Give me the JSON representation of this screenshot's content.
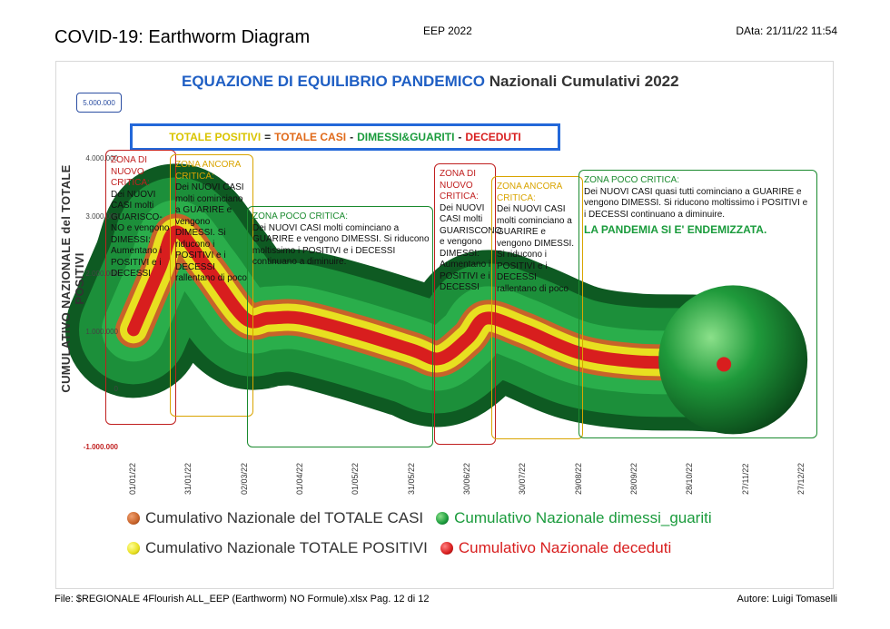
{
  "header": {
    "title": "COVID-19: Earthworm Diagram",
    "center": "EEP 2022",
    "date": "DAta: 21/11/22  11:54"
  },
  "chart_data": {
    "type": "line",
    "title_main": "EQUAZIONE DI EQUILIBRIO PANDEMICO",
    "title_sub": "Nazionali Cumulativi 2022",
    "ylabel": "CUMULATIVO NAZIONALE  del TOTALE POSITIVI",
    "ymax_label": "5.000.000",
    "yticks": [
      "4.000.000",
      "3.000.000",
      "2.000.000",
      "1.000.000",
      "0",
      "-1.000.000"
    ],
    "ylim": [
      -1000000,
      5000000
    ],
    "xticks": [
      "01/01/22",
      "31/01/22",
      "02/03/22",
      "01/04/22",
      "01/05/22",
      "31/05/22",
      "30/06/22",
      "30/07/22",
      "29/08/22",
      "28/09/22",
      "28/10/22",
      "27/11/22",
      "27/12/22"
    ],
    "x": [
      "01/01/22",
      "15/01/22",
      "24/01/22",
      "10/02/22",
      "02/03/22",
      "15/03/22",
      "01/04/22",
      "01/05/22",
      "31/05/22",
      "15/06/22",
      "30/06/22",
      "10/07/22",
      "30/07/22",
      "29/08/22",
      "28/09/22",
      "28/10/22",
      "15/11/22"
    ],
    "series": [
      {
        "name": "Cumulativo Nazionale TOTALE POSITIVI",
        "values": [
          1050000,
          2100000,
          2750000,
          2100000,
          1250000,
          1250000,
          1250000,
          1000000,
          700000,
          550000,
          900000,
          1250000,
          1050000,
          650000,
          500000,
          480000,
          450000
        ]
      }
    ],
    "equation": {
      "a": "TOTALE POSITIVI",
      "eq": "=",
      "b": "TOTALE CASI",
      "m1": "-",
      "c": "DIMESSI&GUARITI",
      "m2": "-",
      "d": "DECEDUTI"
    },
    "legend": [
      {
        "name": "Cumulativo Nazionale del TOTALE CASI",
        "color": "#c8632a"
      },
      {
        "name": "Cumulativo Nazionale dimessi_guariti",
        "color": "#1a9b3c"
      },
      {
        "name": "Cumulativo Nazionale TOTALE POSITIVI",
        "color": "#e8e020"
      },
      {
        "name": "Cumulativo Nazionale deceduti",
        "color": "#d81e1e"
      }
    ],
    "zones": [
      {
        "title": "ZONA DI NUOVO CRITICA:",
        "body": "Dei NUOVI CASI  molti GUARISCO-NO e vengono DIMESSI: Aumentano i POSITIVI e i DECESSI",
        "color": "#c01f1f"
      },
      {
        "title": "ZONA ANCORA CRITICA:",
        "body": "Dei NUOVI CASI  molti cominciano a GUARIRE e vengono DIMESSI. Si riducono i POSITIVI e i DECESSI rallentano di poco",
        "color": "#d9a400"
      },
      {
        "title": "ZONA POCO CRITICA:",
        "body": "Dei NUOVI CASI  molti cominciano a  GUARIRE e vengono DIMESSI. Si riducono moltissimo i  POSITIVI e i DECESSI continuano a diminuire.",
        "color": "#1a8a2e"
      },
      {
        "title": "ZONA DI NUOVO CRITICA:",
        "body": "Dei NUOVI CASI  molti GUARISCONO e vengono DIMESSI: Aumentano i POSITIVI e i DECESSI",
        "color": "#c01f1f"
      },
      {
        "title": "ZONA ANCORA CRITICA:",
        "body": "Dei NUOVI CASI  molti cominciano a GUARIRE e vengono DIMESSI. Si riducono i POSITIVI e i DECESSI rallentano di poco",
        "color": "#d9a400"
      },
      {
        "title": "ZONA POCO CRITICA:",
        "body": "Dei NUOVI CASI  quasi tutti cominciano a GUARIRE e vengono DIMESSI. Si riducono moltissimo i  POSITIVI e i DECESSI continuano a diminuire.",
        "highlight": "LA PANDEMIA SI E' ENDEMIZZATA.",
        "color": "#1a8a2e"
      }
    ]
  },
  "footer": {
    "file": "File: $REGIONALE 4Flourish ALL_EEP (Earthworm) NO Formule).xlsx    Pag. 12 di 12",
    "author": "Autore: Luigi Tomaselli"
  }
}
